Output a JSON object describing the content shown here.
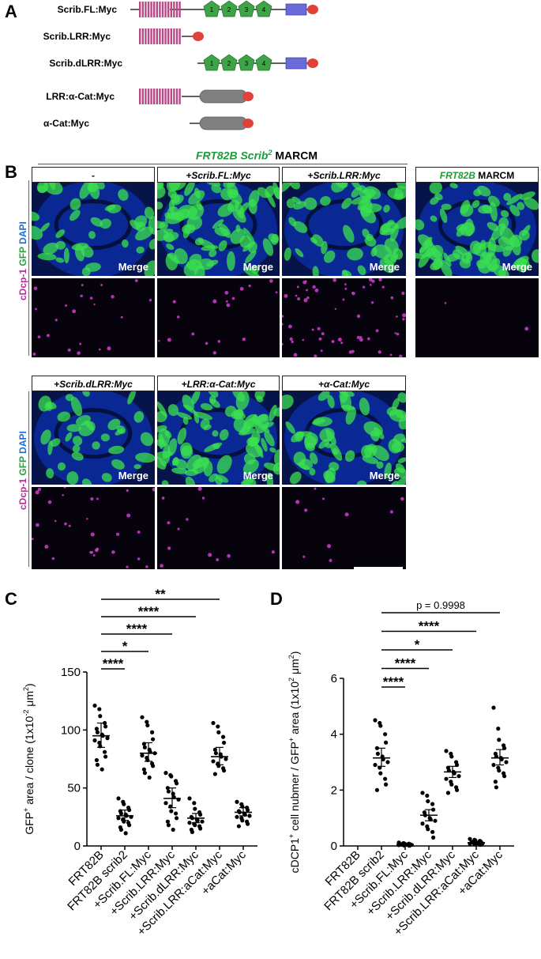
{
  "panel_a": {
    "letter": "A",
    "constructs": [
      {
        "label": "Scrib.FL:Myc",
        "parts": [
          "lrr",
          "domain",
          "pdz",
          "pdz",
          "pdz",
          "pdz",
          "domain",
          "blue",
          "myc"
        ]
      },
      {
        "label": "Scrib.LRR:Myc",
        "parts": [
          "lrr",
          "myc"
        ]
      },
      {
        "label": "Scrib.dLRR:Myc",
        "parts": [
          "pdz",
          "blue",
          "myc"
        ]
      },
      {
        "label": "LRR:α-Cat:Myc",
        "parts": [
          "lrr",
          "grey",
          "myc"
        ]
      },
      {
        "label": "α-Cat:Myc",
        "parts": [
          "grey",
          "myc"
        ]
      }
    ],
    "pdz_numbers": [
      "1",
      "2",
      "3",
      "4"
    ],
    "colors": {
      "lrr": "#b94a87",
      "pdz": "#3fa447",
      "blue": "#6a6ad8",
      "grey": "#808080",
      "myc": "#e0423a"
    }
  },
  "panel_b": {
    "letter": "B",
    "group_title_italic": "FRT82B Scrib",
    "group_title_sup": "2",
    "group_title_plain": " MARCM",
    "side_label": {
      "part1": "cDcp-1",
      "part2": "GFP",
      "part3": "DAPI"
    },
    "merge_text": "Merge",
    "row1": [
      "-",
      "+Scrib.FL:Myc",
      "+Scrib.LRR:Myc"
    ],
    "control": {
      "italic": "FRT82B",
      "plain": " MARCM"
    },
    "row2": [
      "+Scrib.dLRR:Myc",
      "+LRR:α-Cat:Myc",
      "+α-Cat:Myc"
    ]
  },
  "panel_c": {
    "letter": "C",
    "chart_data": {
      "type": "scatter",
      "ylabel_prefix": "GFP",
      "ylabel_sup": "+",
      "ylabel_rest": " area / clone (1x10",
      "ylabel_sup2": "-2",
      "ylabel_unit": " μm",
      "ylabel_sup3": "2",
      "ylabel_end": ")",
      "ylim": [
        0,
        150
      ],
      "yticks": [
        "0",
        "50",
        "100",
        "150"
      ],
      "categories": [
        "FRT82B",
        "FRT82B scrib2",
        "+Scrib.FL:Myc",
        "+Scrib.LRR:Myc",
        "+Scrib.dLRR:Myc",
        "+Scrib.LRR:aCat:Myc",
        "+aCat:Myc"
      ],
      "means": [
        95,
        26,
        80,
        41,
        24,
        77,
        29
      ],
      "ci": [
        [
          85,
          106
        ],
        [
          22,
          31
        ],
        [
          73,
          89
        ],
        [
          33,
          50
        ],
        [
          20,
          28
        ],
        [
          70,
          85
        ],
        [
          26,
          33
        ]
      ],
      "points": [
        [
          121,
          118,
          112,
          106,
          103,
          101,
          98,
          96,
          95,
          93,
          91,
          89,
          86,
          81,
          77,
          74,
          70,
          66
        ],
        [
          41,
          38,
          36,
          33,
          31,
          30,
          28,
          27,
          26,
          25,
          24,
          23,
          21,
          20,
          18,
          16,
          14,
          11
        ],
        [
          111,
          107,
          104,
          98,
          92,
          88,
          85,
          83,
          81,
          80,
          78,
          76,
          74,
          71,
          69,
          66,
          63,
          59
        ],
        [
          63,
          61,
          60,
          56,
          54,
          50,
          47,
          45,
          42,
          40,
          37,
          34,
          30,
          28,
          24,
          21,
          18,
          14
        ],
        [
          41,
          37,
          32,
          29,
          27,
          25,
          24,
          23,
          22,
          21,
          20,
          19,
          18,
          17,
          15,
          14,
          12
        ],
        [
          106,
          103,
          98,
          94,
          89,
          83,
          80,
          79,
          77,
          75,
          73,
          71,
          69,
          67,
          65,
          62
        ],
        [
          38,
          36,
          34,
          33,
          31,
          30,
          29,
          28,
          27,
          26,
          25,
          24,
          22,
          21,
          19,
          17
        ]
      ],
      "sig": [
        {
          "from": 0,
          "to": 1,
          "label": "****"
        },
        {
          "from": 0,
          "to": 2,
          "label": "*"
        },
        {
          "from": 0,
          "to": 3,
          "label": "****"
        },
        {
          "from": 0,
          "to": 4,
          "label": "****"
        },
        {
          "from": 0,
          "to": 5,
          "label": "**"
        },
        {
          "from": 0,
          "to": 6,
          "label": "****"
        }
      ]
    }
  },
  "panel_d": {
    "letter": "D",
    "chart_data": {
      "type": "scatter",
      "ylabel_prefix": "cDCP1",
      "ylabel_sup": "+",
      "ylabel_rest": " cell nubmer / GFP",
      "ylabel_sup2": "+",
      "ylabel_rest2": " area (1x10",
      "ylabel_sup3": "2",
      "ylabel_unit": " μm",
      "ylabel_sup4": "2",
      "ylabel_end": ")",
      "ylim": [
        0,
        6
      ],
      "yticks": [
        "0",
        "2",
        "4",
        "6"
      ],
      "categories": [
        "FRT82B",
        "FRT82B scrib2",
        "+Scrib.FL:Myc",
        "+Scrib.LRR:Myc",
        "+Scrib.dLRR:Myc",
        "+Scrib.LRR:aCat:Myc",
        "+aCat:Myc"
      ],
      "means": [
        null,
        3.15,
        0.05,
        1.1,
        2.65,
        0.12,
        3.15
      ],
      "ci": [
        null,
        [
          2.85,
          3.5
        ],
        [
          0.03,
          0.07
        ],
        [
          0.9,
          1.3
        ],
        [
          2.45,
          2.85
        ],
        [
          0.09,
          0.15
        ],
        [
          2.9,
          3.45
        ]
      ],
      "points": [
        [],
        [
          4.5,
          4.4,
          4.3,
          4.0,
          3.7,
          3.5,
          3.3,
          3.2,
          3.1,
          3.0,
          2.9,
          2.8,
          2.6,
          2.4,
          2.2,
          2.0
        ],
        [
          0.12,
          0.1,
          0.09,
          0.08,
          0.07,
          0.06,
          0.05,
          0.05,
          0.04,
          0.04,
          0.03,
          0.03,
          0.02,
          0.02,
          0.01
        ],
        [
          1.9,
          1.8,
          1.6,
          1.5,
          1.3,
          1.2,
          1.1,
          1.0,
          0.95,
          0.9,
          0.8,
          0.7,
          0.6,
          0.5,
          0.3
        ],
        [
          3.4,
          3.3,
          3.2,
          3.0,
          2.9,
          2.8,
          2.7,
          2.65,
          2.6,
          2.5,
          2.4,
          2.3,
          2.2,
          2.1,
          2.0,
          1.9
        ],
        [
          0.25,
          0.22,
          0.2,
          0.18,
          0.16,
          0.14,
          0.12,
          0.11,
          0.1,
          0.09,
          0.08,
          0.07,
          0.06,
          0.05,
          0.04
        ],
        [
          4.95,
          4.2,
          3.8,
          3.6,
          3.5,
          3.3,
          3.2,
          3.15,
          3.1,
          3.0,
          2.9,
          2.8,
          2.7,
          2.6,
          2.5,
          2.3,
          2.1
        ]
      ],
      "sig": [
        {
          "from": 1,
          "to": 2,
          "label": "****"
        },
        {
          "from": 1,
          "to": 3,
          "label": "****"
        },
        {
          "from": 1,
          "to": 4,
          "label": "*"
        },
        {
          "from": 1,
          "to": 5,
          "label": "****"
        },
        {
          "from": 1,
          "to": 6,
          "label": "p = 0.9998"
        }
      ]
    }
  }
}
